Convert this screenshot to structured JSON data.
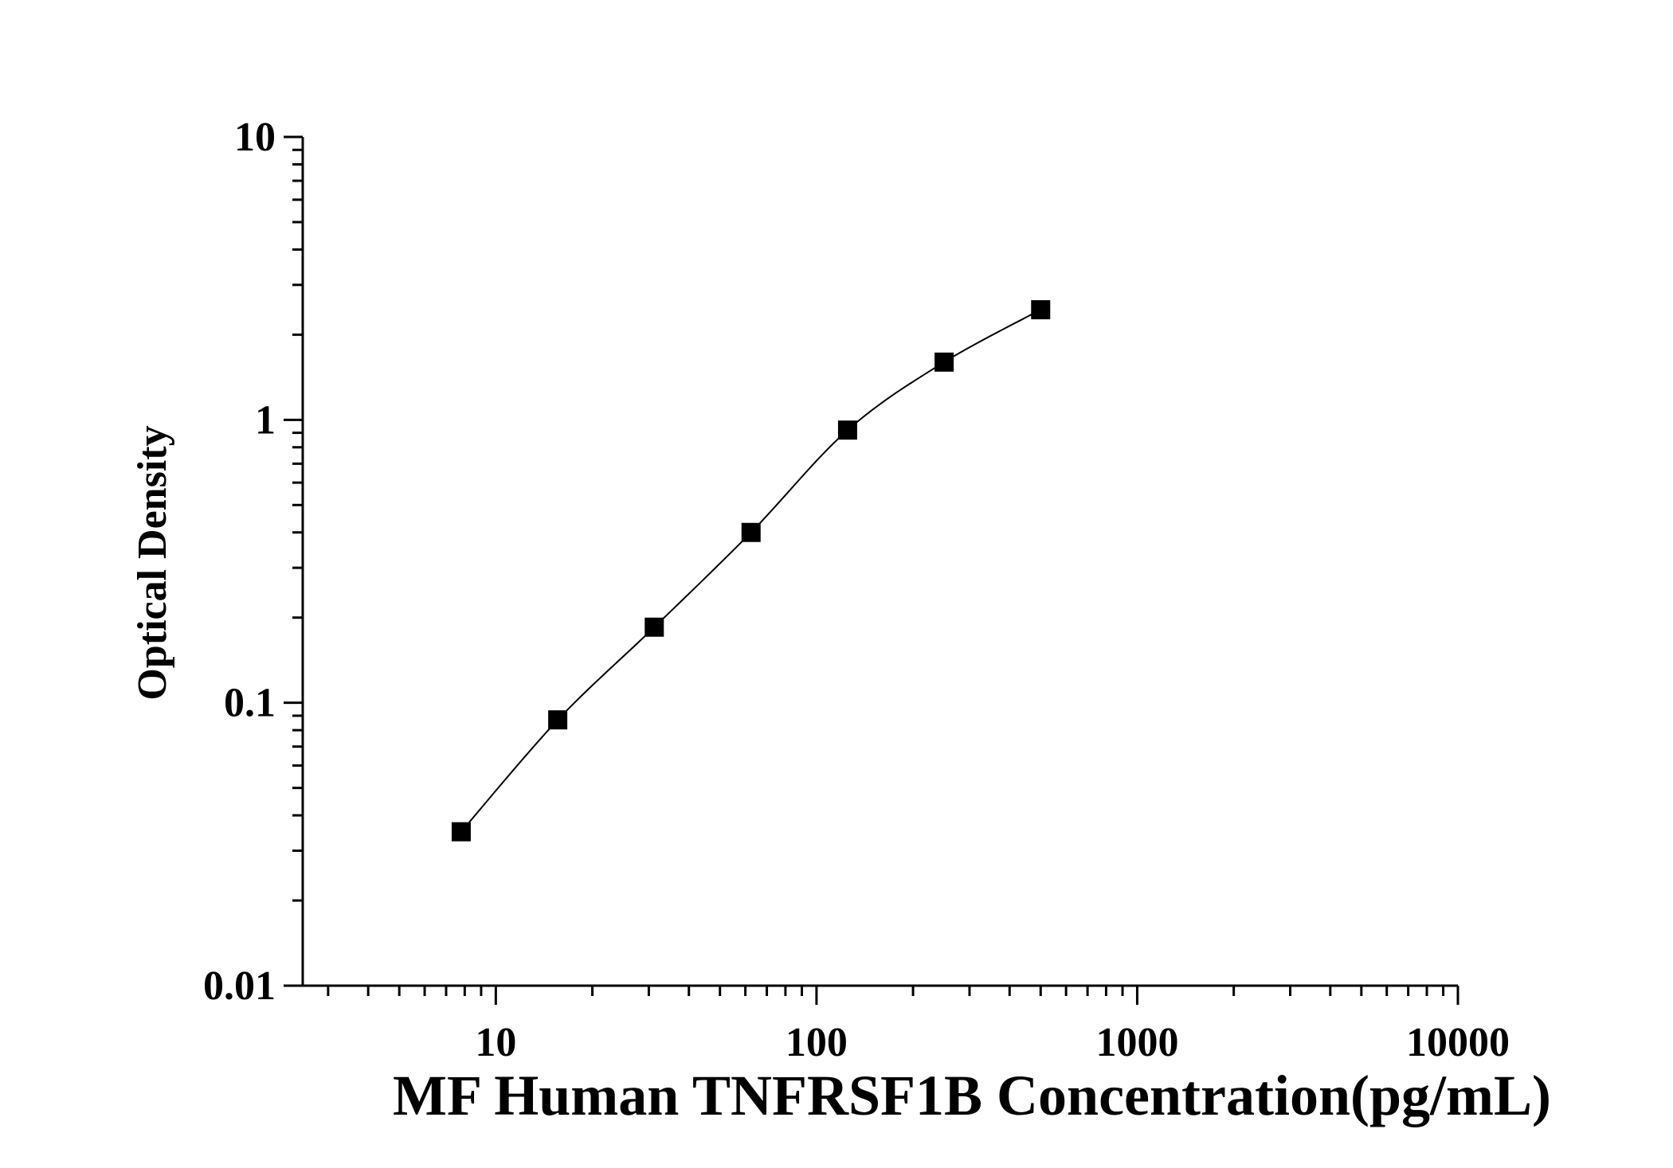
{
  "chart_data": {
    "type": "scatter",
    "title": "",
    "xlabel": "MF Human TNFRSF1B Concentration(pg/mL)",
    "ylabel": "Optical Density",
    "x_scale": "log",
    "y_scale": "log",
    "xlim": [
      2.5,
      10000
    ],
    "ylim": [
      0.01,
      10
    ],
    "x_ticks": [
      10,
      100,
      1000,
      10000
    ],
    "x_tick_labels": [
      "10",
      "100",
      "1000",
      "10000"
    ],
    "y_ticks": [
      0.01,
      0.1,
      1,
      10
    ],
    "y_tick_labels": [
      "0.01",
      "0.1",
      "1",
      "10"
    ],
    "grid": false,
    "legend": "none",
    "series": [
      {
        "marker": "square",
        "line": "smooth",
        "color": "#000000",
        "x": [
          7.8,
          15.6,
          31.2,
          62.5,
          125,
          250,
          500
        ],
        "y": [
          0.035,
          0.087,
          0.185,
          0.4,
          0.92,
          1.6,
          2.45
        ]
      }
    ]
  }
}
